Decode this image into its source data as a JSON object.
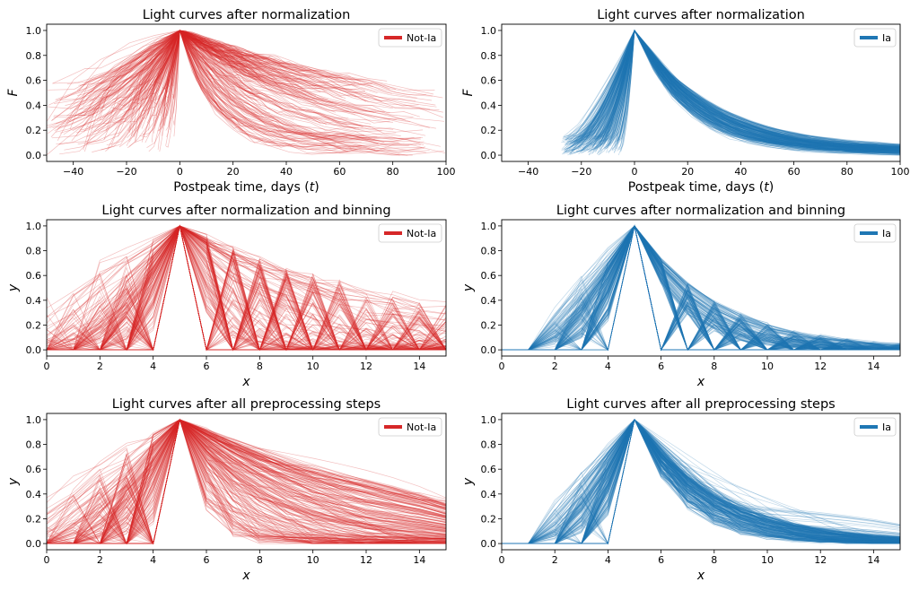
{
  "colors": {
    "not_ia": "#d62728",
    "ia": "#1f77b4"
  },
  "chart_data": [
    {
      "type": "line",
      "row": 0,
      "col": 0,
      "kind": "raw",
      "title": "Light curves after normalization",
      "xlabel": "Postpeak time, days (",
      "xlabel_var": "t",
      "xlabel_end": ")",
      "ylabel": "F",
      "xlim": [
        -50,
        100
      ],
      "ylim": [
        -0.05,
        1.05
      ],
      "xticks": [
        -40,
        -20,
        0,
        20,
        40,
        60,
        80,
        100
      ],
      "yticks": [
        0.0,
        0.2,
        0.4,
        0.6,
        0.8,
        1.0
      ],
      "legend": "Not-Ia",
      "legend_loc": "upper right",
      "color_key": "not_ia",
      "peak_x": 0,
      "rise_range_days": [
        -50,
        -2
      ],
      "decline_timescale_days": [
        12,
        120
      ],
      "n_curves": 220,
      "grid": false
    },
    {
      "type": "line",
      "row": 0,
      "col": 1,
      "kind": "raw",
      "title": "Light curves after normalization",
      "xlabel": "Postpeak time, days (",
      "xlabel_var": "t",
      "xlabel_end": ")",
      "ylabel": "F",
      "xlim": [
        -50,
        100
      ],
      "ylim": [
        -0.05,
        1.05
      ],
      "xticks": [
        -40,
        -20,
        0,
        20,
        40,
        60,
        80,
        100
      ],
      "yticks": [
        0.0,
        0.2,
        0.4,
        0.6,
        0.8,
        1.0
      ],
      "legend": "Ia",
      "legend_loc": "upper right",
      "color_key": "ia",
      "peak_x": 0,
      "rise_range_days": [
        -28,
        -5
      ],
      "decline_timescale_days": [
        18,
        30
      ],
      "n_curves": 260,
      "grid": false
    },
    {
      "type": "line",
      "row": 1,
      "col": 0,
      "kind": "binned",
      "title": "Light curves after normalization and binning",
      "xlabel": "x",
      "ylabel": "y",
      "xlim": [
        0,
        15
      ],
      "ylim": [
        -0.05,
        1.05
      ],
      "xticks": [
        0,
        2,
        4,
        6,
        8,
        10,
        12,
        14
      ],
      "yticks": [
        0.0,
        0.2,
        0.4,
        0.6,
        0.8,
        1.0
      ],
      "legend": "Not-Ia",
      "legend_loc": "upper right",
      "color_key": "not_ia",
      "peak_x": 5,
      "bins": 16,
      "n_curves": 220,
      "grid": false
    },
    {
      "type": "line",
      "row": 1,
      "col": 1,
      "kind": "binned",
      "title": "Light curves after normalization and binning",
      "xlabel": "x",
      "ylabel": "y",
      "xlim": [
        0,
        15
      ],
      "ylim": [
        -0.05,
        1.05
      ],
      "xticks": [
        0,
        2,
        4,
        6,
        8,
        10,
        12,
        14
      ],
      "yticks": [
        0.0,
        0.2,
        0.4,
        0.6,
        0.8,
        1.0
      ],
      "legend": "Ia",
      "legend_loc": "upper right",
      "color_key": "ia",
      "peak_x": 5,
      "bins": 16,
      "n_curves": 260,
      "grid": false
    },
    {
      "type": "line",
      "row": 2,
      "col": 0,
      "kind": "processed",
      "title": "Light curves after all preprocessing steps",
      "xlabel": "x",
      "ylabel": "y",
      "xlim": [
        0,
        15
      ],
      "ylim": [
        -0.05,
        1.05
      ],
      "xticks": [
        0,
        2,
        4,
        6,
        8,
        10,
        12,
        14
      ],
      "yticks": [
        0.0,
        0.2,
        0.4,
        0.6,
        0.8,
        1.0
      ],
      "legend": "Not-Ia",
      "legend_loc": "upper right",
      "color_key": "not_ia",
      "peak_x": 5,
      "bins": 16,
      "n_curves": 220,
      "grid": false
    },
    {
      "type": "line",
      "row": 2,
      "col": 1,
      "kind": "processed",
      "title": "Light curves after all preprocessing steps",
      "xlabel": "x",
      "ylabel": "y",
      "xlim": [
        0,
        15
      ],
      "ylim": [
        -0.05,
        1.05
      ],
      "xticks": [
        0,
        2,
        4,
        6,
        8,
        10,
        12,
        14
      ],
      "yticks": [
        0.0,
        0.2,
        0.4,
        0.6,
        0.8,
        1.0
      ],
      "legend": "Ia",
      "legend_loc": "upper right",
      "color_key": "ia",
      "peak_x": 5,
      "bins": 16,
      "n_curves": 260,
      "grid": false
    }
  ]
}
